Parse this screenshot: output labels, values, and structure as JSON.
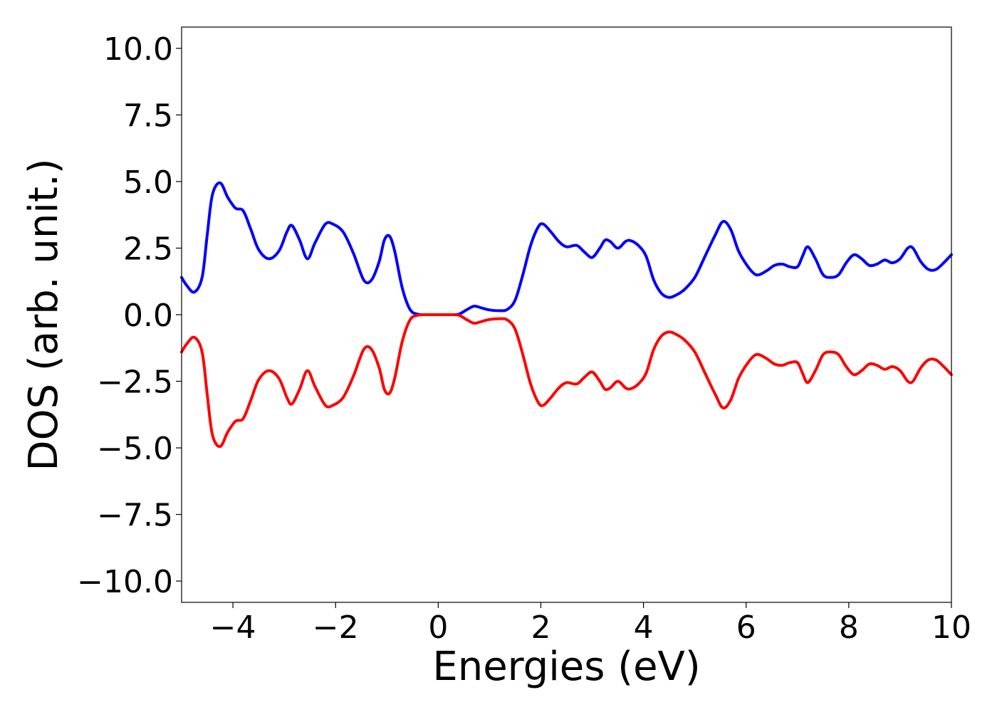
{
  "chart_data": {
    "type": "line",
    "title": "",
    "xlabel": "Energies (eV)",
    "ylabel": "DOS (arb. unit.)",
    "xlim": [
      -5,
      10
    ],
    "ylim": [
      -10.8,
      10.8
    ],
    "x_ticks": [
      -4,
      -2,
      0,
      2,
      4,
      6,
      8,
      10
    ],
    "x_tick_labels": [
      "−4",
      "−2",
      "0",
      "2",
      "4",
      "6",
      "8",
      "10"
    ],
    "y_ticks": [
      10,
      7.5,
      5,
      2.5,
      0,
      -2.5,
      -5,
      -7.5,
      -10
    ],
    "y_tick_labels": [
      "10.0",
      "7.5",
      "5.0",
      "2.5",
      "0.0",
      "−2.5",
      "−5.0",
      "−7.5",
      "−10.0"
    ],
    "grid": false,
    "legend": "none",
    "series": [
      {
        "color": "#0000ff",
        "points": [
          [
            -5.0,
            1.4
          ],
          [
            -4.9,
            1.1
          ],
          [
            -4.75,
            0.85
          ],
          [
            -4.6,
            1.4
          ],
          [
            -4.5,
            3.0
          ],
          [
            -4.4,
            4.5
          ],
          [
            -4.25,
            4.95
          ],
          [
            -4.1,
            4.4
          ],
          [
            -3.95,
            4.0
          ],
          [
            -3.8,
            3.9
          ],
          [
            -3.65,
            3.2
          ],
          [
            -3.5,
            2.45
          ],
          [
            -3.3,
            2.1
          ],
          [
            -3.1,
            2.4
          ],
          [
            -2.95,
            3.1
          ],
          [
            -2.85,
            3.35
          ],
          [
            -2.7,
            2.8
          ],
          [
            -2.55,
            2.1
          ],
          [
            -2.4,
            2.7
          ],
          [
            -2.2,
            3.4
          ],
          [
            -2.05,
            3.4
          ],
          [
            -1.85,
            3.1
          ],
          [
            -1.65,
            2.3
          ],
          [
            -1.45,
            1.3
          ],
          [
            -1.3,
            1.3
          ],
          [
            -1.15,
            2.0
          ],
          [
            -1.05,
            2.8
          ],
          [
            -0.95,
            2.95
          ],
          [
            -0.85,
            2.4
          ],
          [
            -0.7,
            1.0
          ],
          [
            -0.55,
            0.2
          ],
          [
            -0.4,
            0.02
          ],
          [
            -0.2,
            0.0
          ],
          [
            0.0,
            0.0
          ],
          [
            0.2,
            0.0
          ],
          [
            0.4,
            0.02
          ],
          [
            0.55,
            0.18
          ],
          [
            0.7,
            0.32
          ],
          [
            0.85,
            0.25
          ],
          [
            1.0,
            0.18
          ],
          [
            1.2,
            0.15
          ],
          [
            1.35,
            0.2
          ],
          [
            1.5,
            0.55
          ],
          [
            1.65,
            1.5
          ],
          [
            1.8,
            2.6
          ],
          [
            1.95,
            3.3
          ],
          [
            2.05,
            3.4
          ],
          [
            2.2,
            3.1
          ],
          [
            2.35,
            2.75
          ],
          [
            2.5,
            2.55
          ],
          [
            2.7,
            2.6
          ],
          [
            2.85,
            2.35
          ],
          [
            3.0,
            2.15
          ],
          [
            3.15,
            2.5
          ],
          [
            3.25,
            2.8
          ],
          [
            3.35,
            2.75
          ],
          [
            3.5,
            2.5
          ],
          [
            3.65,
            2.75
          ],
          [
            3.75,
            2.78
          ],
          [
            3.9,
            2.6
          ],
          [
            4.05,
            2.2
          ],
          [
            4.2,
            1.3
          ],
          [
            4.35,
            0.8
          ],
          [
            4.5,
            0.65
          ],
          [
            4.65,
            0.75
          ],
          [
            4.8,
            0.95
          ],
          [
            5.0,
            1.4
          ],
          [
            5.2,
            2.2
          ],
          [
            5.4,
            3.0
          ],
          [
            5.55,
            3.5
          ],
          [
            5.7,
            3.2
          ],
          [
            5.85,
            2.4
          ],
          [
            6.0,
            1.9
          ],
          [
            6.15,
            1.55
          ],
          [
            6.25,
            1.5
          ],
          [
            6.4,
            1.65
          ],
          [
            6.55,
            1.85
          ],
          [
            6.7,
            1.9
          ],
          [
            6.85,
            1.8
          ],
          [
            7.0,
            1.8
          ],
          [
            7.1,
            2.2
          ],
          [
            7.2,
            2.55
          ],
          [
            7.35,
            2.1
          ],
          [
            7.5,
            1.5
          ],
          [
            7.65,
            1.4
          ],
          [
            7.8,
            1.5
          ],
          [
            7.95,
            1.95
          ],
          [
            8.1,
            2.25
          ],
          [
            8.25,
            2.1
          ],
          [
            8.4,
            1.85
          ],
          [
            8.55,
            1.9
          ],
          [
            8.7,
            2.05
          ],
          [
            8.85,
            1.95
          ],
          [
            9.0,
            2.1
          ],
          [
            9.15,
            2.5
          ],
          [
            9.25,
            2.5
          ],
          [
            9.4,
            2.0
          ],
          [
            9.55,
            1.7
          ],
          [
            9.7,
            1.7
          ],
          [
            9.85,
            1.95
          ],
          [
            10.0,
            2.25
          ]
        ]
      },
      {
        "color": "#ff0000",
        "points": [
          [
            -5.0,
            -1.4
          ],
          [
            -4.9,
            -1.1
          ],
          [
            -4.75,
            -0.85
          ],
          [
            -4.6,
            -1.4
          ],
          [
            -4.5,
            -3.0
          ],
          [
            -4.4,
            -4.5
          ],
          [
            -4.25,
            -4.95
          ],
          [
            -4.1,
            -4.4
          ],
          [
            -3.95,
            -4.0
          ],
          [
            -3.8,
            -3.9
          ],
          [
            -3.65,
            -3.2
          ],
          [
            -3.5,
            -2.45
          ],
          [
            -3.3,
            -2.1
          ],
          [
            -3.1,
            -2.4
          ],
          [
            -2.95,
            -3.1
          ],
          [
            -2.85,
            -3.35
          ],
          [
            -2.7,
            -2.8
          ],
          [
            -2.55,
            -2.1
          ],
          [
            -2.4,
            -2.7
          ],
          [
            -2.2,
            -3.4
          ],
          [
            -2.05,
            -3.4
          ],
          [
            -1.85,
            -3.1
          ],
          [
            -1.65,
            -2.3
          ],
          [
            -1.45,
            -1.3
          ],
          [
            -1.3,
            -1.3
          ],
          [
            -1.15,
            -2.0
          ],
          [
            -1.05,
            -2.8
          ],
          [
            -0.95,
            -2.95
          ],
          [
            -0.85,
            -2.4
          ],
          [
            -0.7,
            -1.0
          ],
          [
            -0.55,
            -0.2
          ],
          [
            -0.4,
            -0.02
          ],
          [
            -0.2,
            0.0
          ],
          [
            0.0,
            0.0
          ],
          [
            0.2,
            0.0
          ],
          [
            0.4,
            -0.02
          ],
          [
            0.55,
            -0.18
          ],
          [
            0.7,
            -0.32
          ],
          [
            0.85,
            -0.25
          ],
          [
            1.0,
            -0.18
          ],
          [
            1.2,
            -0.15
          ],
          [
            1.35,
            -0.2
          ],
          [
            1.5,
            -0.55
          ],
          [
            1.65,
            -1.5
          ],
          [
            1.8,
            -2.6
          ],
          [
            1.95,
            -3.3
          ],
          [
            2.05,
            -3.4
          ],
          [
            2.2,
            -3.1
          ],
          [
            2.35,
            -2.75
          ],
          [
            2.5,
            -2.55
          ],
          [
            2.7,
            -2.6
          ],
          [
            2.85,
            -2.35
          ],
          [
            3.0,
            -2.15
          ],
          [
            3.15,
            -2.5
          ],
          [
            3.25,
            -2.8
          ],
          [
            3.35,
            -2.75
          ],
          [
            3.5,
            -2.5
          ],
          [
            3.65,
            -2.75
          ],
          [
            3.75,
            -2.78
          ],
          [
            3.9,
            -2.6
          ],
          [
            4.05,
            -2.2
          ],
          [
            4.2,
            -1.3
          ],
          [
            4.35,
            -0.8
          ],
          [
            4.5,
            -0.65
          ],
          [
            4.65,
            -0.75
          ],
          [
            4.8,
            -0.95
          ],
          [
            5.0,
            -1.4
          ],
          [
            5.2,
            -2.2
          ],
          [
            5.4,
            -3.0
          ],
          [
            5.55,
            -3.5
          ],
          [
            5.7,
            -3.2
          ],
          [
            5.85,
            -2.4
          ],
          [
            6.0,
            -1.9
          ],
          [
            6.15,
            -1.55
          ],
          [
            6.25,
            -1.5
          ],
          [
            6.4,
            -1.65
          ],
          [
            6.55,
            -1.85
          ],
          [
            6.7,
            -1.9
          ],
          [
            6.85,
            -1.8
          ],
          [
            7.0,
            -1.8
          ],
          [
            7.1,
            -2.2
          ],
          [
            7.2,
            -2.55
          ],
          [
            7.35,
            -2.1
          ],
          [
            7.5,
            -1.5
          ],
          [
            7.65,
            -1.4
          ],
          [
            7.8,
            -1.5
          ],
          [
            7.95,
            -1.95
          ],
          [
            8.1,
            -2.25
          ],
          [
            8.25,
            -2.1
          ],
          [
            8.4,
            -1.85
          ],
          [
            8.55,
            -1.9
          ],
          [
            8.7,
            -2.05
          ],
          [
            8.85,
            -1.95
          ],
          [
            9.0,
            -2.1
          ],
          [
            9.15,
            -2.5
          ],
          [
            9.25,
            -2.5
          ],
          [
            9.4,
            -2.0
          ],
          [
            9.55,
            -1.7
          ],
          [
            9.7,
            -1.7
          ],
          [
            9.85,
            -1.95
          ],
          [
            10.0,
            -2.25
          ]
        ]
      }
    ]
  }
}
